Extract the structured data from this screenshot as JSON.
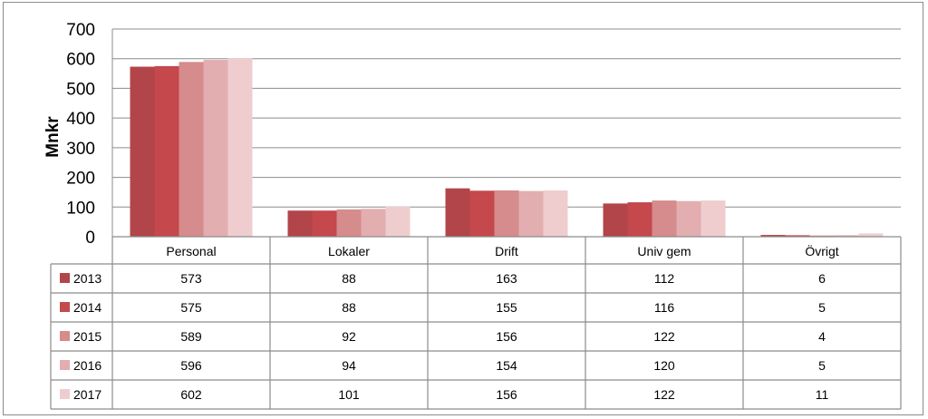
{
  "chart_data": {
    "type": "bar",
    "ylabel": "Mnkr",
    "ylim": [
      0,
      700
    ],
    "yticks": [
      "0",
      "100",
      "200",
      "300",
      "400",
      "500",
      "600",
      "700"
    ],
    "grid": true,
    "legend_placement": "data-table-left",
    "categories": [
      "Personal",
      "Lokaler",
      "Drift",
      "Univ gem",
      "Övrigt"
    ],
    "series": [
      {
        "name": "2013",
        "color": "#b24549",
        "values": [
          573,
          88,
          163,
          112,
          6
        ]
      },
      {
        "name": "2014",
        "color": "#c4484c",
        "values": [
          575,
          88,
          155,
          116,
          5
        ]
      },
      {
        "name": "2015",
        "color": "#d68b8c",
        "values": [
          589,
          92,
          156,
          122,
          4
        ]
      },
      {
        "name": "2016",
        "color": "#e3aeb0",
        "values": [
          596,
          94,
          154,
          120,
          5
        ]
      },
      {
        "name": "2017",
        "color": "#efcdcf",
        "values": [
          602,
          101,
          156,
          122,
          11
        ]
      }
    ],
    "data_table": [
      [
        "573",
        "88",
        "163",
        "112",
        "6"
      ],
      [
        "575",
        "88",
        "155",
        "116",
        "5"
      ],
      [
        "589",
        "92",
        "156",
        "122",
        "4"
      ],
      [
        "596",
        "94",
        "154",
        "120",
        "5"
      ],
      [
        "602",
        "101",
        "156",
        "122",
        "11"
      ]
    ]
  }
}
